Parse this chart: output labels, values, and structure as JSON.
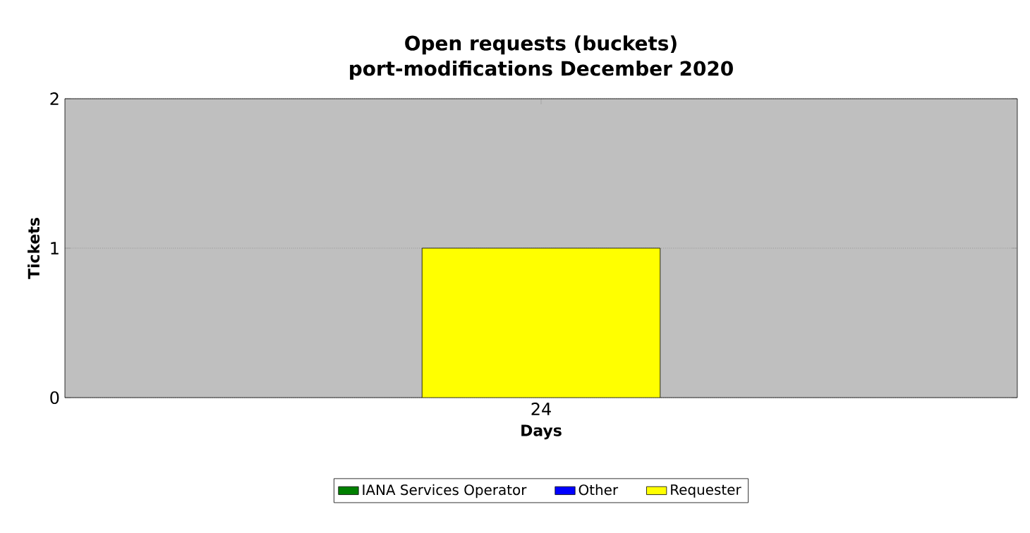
{
  "chart_data": {
    "type": "bar",
    "title": "Open requests (buckets)",
    "subtitle": "port-modifications December 2020",
    "xlabel": "Days",
    "ylabel": "Tickets",
    "categories": [
      "24"
    ],
    "stacked": true,
    "series": [
      {
        "name": "IANA Services Operator",
        "color": "#008000",
        "values": [
          0
        ]
      },
      {
        "name": "Other",
        "color": "#0000ff",
        "values": [
          0
        ]
      },
      {
        "name": "Requester",
        "color": "#ffff00",
        "values": [
          1
        ]
      }
    ],
    "ylim": [
      0,
      2
    ],
    "yticks": [
      0,
      1,
      2
    ],
    "grid": "y",
    "legend": "bottom"
  }
}
